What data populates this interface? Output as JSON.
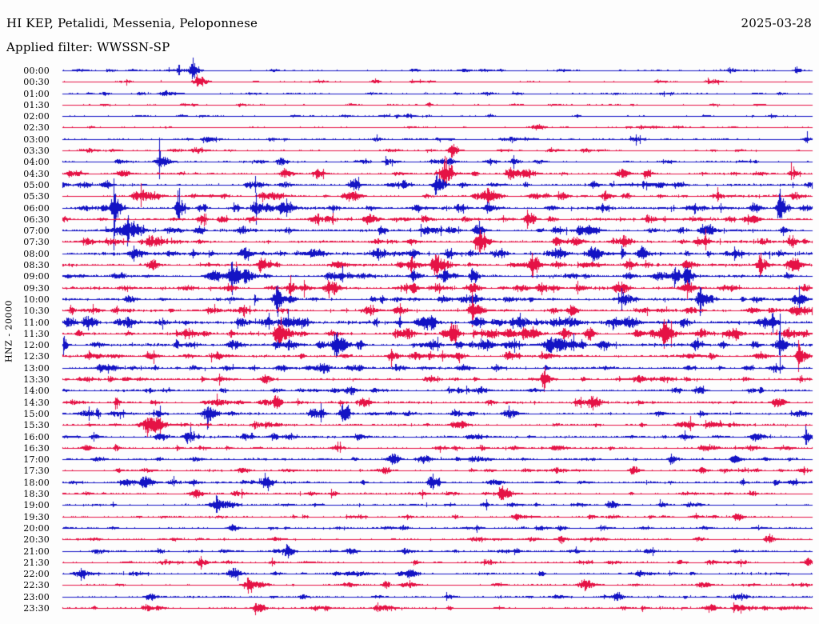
{
  "header": {
    "title": "HI KEP, Petalidi, Messenia, Peloponnese",
    "date": "2025-03-28",
    "filter_label": "Applied filter: WWSSN-SP"
  },
  "y_axis": {
    "channel_scale_label": "HNZ - 20000"
  },
  "colors": {
    "trace_blue": "#1313c4",
    "trace_red": "#e51245",
    "text": "#000000",
    "background": "#fdfdfd"
  },
  "chart_data": {
    "type": "line",
    "subtype": "helicorder-daily-seismogram",
    "title": "HI KEP, Petalidi, Messenia, Peloponnese",
    "station": "KEP",
    "network": "HI",
    "location_name": "Petalidi, Messenia, Peloponnese",
    "channel": "HNZ",
    "scale": 20000,
    "date": "2025-03-28",
    "filter": "WWSSN-SP",
    "minutes_per_row": 30,
    "row_count": 48,
    "trace_color_pattern": [
      "blue",
      "red"
    ],
    "x_range_fraction_of_day_row": [
      0,
      1
    ],
    "legend_note": "48 half-hour traces, times at left edge; noise = background amplitude (px), events = [x-fraction along row, peak amplitude px, spindle width px]",
    "rows": [
      {
        "time": "00:00",
        "color": "blue",
        "noise": 0.7,
        "events": [
          [
            0.173,
            8,
            5
          ],
          [
            0.89,
            2.5,
            6
          ]
        ]
      },
      {
        "time": "00:30",
        "color": "red",
        "noise": 0.55,
        "events": [
          [
            0.18,
            6,
            7
          ]
        ]
      },
      {
        "time": "01:00",
        "color": "blue",
        "noise": 0.7,
        "events": [
          [
            0.055,
            2,
            4
          ],
          [
            0.135,
            2.5,
            8
          ]
        ]
      },
      {
        "time": "01:30",
        "color": "red",
        "noise": 0.55,
        "events": [
          [
            0.237,
            2,
            5
          ],
          [
            0.487,
            3,
            3
          ]
        ]
      },
      {
        "time": "02:00",
        "color": "blue",
        "noise": 0.6,
        "events": [
          [
            0.375,
            1.5,
            5
          ]
        ]
      },
      {
        "time": "02:30",
        "color": "red",
        "noise": 0.55,
        "events": [
          [
            0.77,
            2.5,
            4
          ]
        ]
      },
      {
        "time": "03:00",
        "color": "blue",
        "noise": 0.7,
        "events": [
          [
            0.418,
            2,
            5
          ],
          [
            0.991,
            3,
            3
          ]
        ]
      },
      {
        "time": "03:30",
        "color": "red",
        "noise": 0.7,
        "events": [
          [
            0.519,
            6,
            6
          ],
          [
            0.695,
            2.5,
            5
          ]
        ]
      },
      {
        "time": "04:00",
        "color": "blue",
        "noise": 0.9,
        "events": [
          [
            0.13,
            7,
            7
          ],
          [
            0.29,
            2.5,
            5
          ],
          [
            0.514,
            4,
            5
          ]
        ]
      },
      {
        "time": "04:30",
        "color": "red",
        "noise": 1.1,
        "events": [
          [
            0.077,
            4,
            7
          ],
          [
            0.295,
            4,
            6
          ],
          [
            0.338,
            5,
            6
          ],
          [
            0.509,
            9,
            7
          ],
          [
            0.743,
            4,
            7
          ],
          [
            0.972,
            5,
            5
          ]
        ]
      },
      {
        "time": "05:00",
        "color": "blue",
        "noise": 1.1,
        "events": [
          [
            0.247,
            3,
            6
          ],
          [
            0.386,
            5,
            6
          ],
          [
            0.455,
            4,
            5
          ],
          [
            0.498,
            6,
            6
          ],
          [
            0.706,
            3,
            6
          ]
        ]
      },
      {
        "time": "05:30",
        "color": "red",
        "noise": 1.2,
        "events": [
          [
            0.098,
            5,
            7
          ],
          [
            0.386,
            4,
            6
          ],
          [
            0.567,
            8,
            8
          ],
          [
            0.663,
            5,
            6
          ],
          [
            0.722,
            5,
            5
          ]
        ]
      },
      {
        "time": "06:00",
        "color": "blue",
        "noise": 1.4,
        "events": [
          [
            0.069,
            10,
            6
          ],
          [
            0.154,
            10,
            5
          ],
          [
            0.258,
            4,
            6
          ],
          [
            0.471,
            3,
            6
          ],
          [
            0.919,
            4,
            5
          ],
          [
            0.956,
            9,
            6
          ]
        ]
      },
      {
        "time": "06:30",
        "color": "red",
        "noise": 1.3,
        "events": [
          [
            0.407,
            5,
            7
          ],
          [
            0.62,
            6,
            6
          ],
          [
            0.78,
            4,
            6
          ],
          [
            0.887,
            3,
            5
          ]
        ]
      },
      {
        "time": "07:00",
        "color": "blue",
        "noise": 1.4,
        "events": [
          [
            0.087,
            9,
            9
          ],
          [
            0.237,
            4,
            6
          ],
          [
            0.556,
            3,
            5
          ],
          [
            0.823,
            3,
            5
          ]
        ]
      },
      {
        "time": "07:30",
        "color": "red",
        "noise": 1.4,
        "events": [
          [
            0.556,
            9,
            7
          ],
          [
            0.748,
            6,
            6
          ],
          [
            0.972,
            4,
            5
          ]
        ]
      },
      {
        "time": "08:00",
        "color": "blue",
        "noise": 1.7,
        "events": [
          [
            0.093,
            5,
            7
          ],
          [
            0.343,
            3,
            6
          ],
          [
            0.663,
            3,
            5
          ],
          [
            0.898,
            3,
            5
          ]
        ]
      },
      {
        "time": "08:30",
        "color": "red",
        "noise": 1.5,
        "events": [
          [
            0.498,
            9,
            9
          ],
          [
            0.626,
            6,
            6
          ],
          [
            0.834,
            4,
            6
          ],
          [
            0.93,
            7,
            6
          ]
        ]
      },
      {
        "time": "09:00",
        "color": "blue",
        "noise": 1.5,
        "events": [
          [
            0.226,
            10,
            7
          ],
          [
            0.244,
            8,
            4
          ],
          [
            0.354,
            5,
            5
          ],
          [
            0.546,
            4,
            5
          ],
          [
            0.816,
            6,
            5
          ],
          [
            0.832,
            8,
            5
          ]
        ]
      },
      {
        "time": "09:30",
        "color": "red",
        "noise": 1.4,
        "events": [
          [
            0.221,
            4,
            6
          ],
          [
            0.354,
            7,
            7
          ],
          [
            0.546,
            5,
            6
          ],
          [
            0.988,
            5,
            4
          ]
        ]
      },
      {
        "time": "10:00",
        "color": "blue",
        "noise": 1.4,
        "events": [
          [
            0.087,
            4,
            6
          ],
          [
            0.285,
            9,
            7
          ],
          [
            0.546,
            5,
            6
          ],
          [
            0.748,
            4,
            6
          ],
          [
            0.85,
            9,
            6
          ]
        ]
      },
      {
        "time": "10:30",
        "color": "red",
        "noise": 1.4,
        "events": [
          [
            0.011,
            5,
            3
          ],
          [
            0.546,
            7,
            7
          ],
          [
            0.834,
            4,
            6
          ],
          [
            0.972,
            5,
            4
          ]
        ]
      },
      {
        "time": "11:00",
        "color": "blue",
        "noise": 1.8,
        "events": [
          [
            0.036,
            5,
            6
          ],
          [
            0.61,
            6,
            6
          ],
          [
            0.674,
            4,
            6
          ],
          [
            0.946,
            6,
            5
          ]
        ]
      },
      {
        "time": "11:30",
        "color": "red",
        "noise": 1.8,
        "events": [
          [
            0.29,
            9,
            8
          ],
          [
            0.668,
            6,
            6
          ],
          [
            0.802,
            8,
            7
          ]
        ]
      },
      {
        "time": "12:00",
        "color": "blue",
        "noise": 1.7,
        "events": [
          [
            0.002,
            6,
            3
          ],
          [
            0.365,
            6,
            7
          ],
          [
            0.599,
            4,
            6
          ],
          [
            0.956,
            9,
            5
          ]
        ]
      },
      {
        "time": "12:30",
        "color": "red",
        "noise": 1.4,
        "events": [
          [
            0.594,
            5,
            6
          ],
          [
            0.981,
            10,
            4
          ]
        ]
      },
      {
        "time": "13:00",
        "color": "blue",
        "noise": 1.2,
        "events": [
          [
            0.05,
            4,
            5
          ],
          [
            0.535,
            3,
            6
          ],
          [
            0.834,
            3,
            5
          ]
        ]
      },
      {
        "time": "13:30",
        "color": "red",
        "noise": 1.2,
        "events": [
          [
            0.269,
            5,
            6
          ],
          [
            0.642,
            7,
            6
          ]
        ]
      },
      {
        "time": "14:00",
        "color": "blue",
        "noise": 1.1,
        "events": [
          [
            0.556,
            3,
            6
          ],
          [
            0.844,
            3,
            5
          ]
        ]
      },
      {
        "time": "14:30",
        "color": "red",
        "noise": 1.2,
        "events": [
          [
            0.071,
            5,
            3
          ],
          [
            0.397,
            4,
            6
          ],
          [
            0.706,
            7,
            7
          ]
        ]
      },
      {
        "time": "15:00",
        "color": "blue",
        "noise": 1.2,
        "events": [
          [
            0.194,
            8,
            6
          ],
          [
            0.333,
            5,
            6
          ],
          [
            0.375,
            5,
            5
          ]
        ]
      },
      {
        "time": "15:30",
        "color": "red",
        "noise": 1.2,
        "events": [
          [
            0.114,
            8,
            13
          ]
        ]
      },
      {
        "time": "16:00",
        "color": "blue",
        "noise": 1.1,
        "events": [
          [
            0.167,
            5,
            6
          ],
          [
            0.828,
            4,
            6
          ],
          [
            0.991,
            6,
            4
          ]
        ]
      },
      {
        "time": "16:30",
        "color": "red",
        "noise": 1.0,
        "events": [
          [
            0.029,
            3,
            4
          ],
          [
            0.071,
            3,
            4
          ],
          [
            0.365,
            3,
            6
          ]
        ]
      },
      {
        "time": "17:00",
        "color": "blue",
        "noise": 1.1,
        "events": [
          [
            0.812,
            5,
            5
          ]
        ]
      },
      {
        "time": "17:30",
        "color": "red",
        "noise": 1.0,
        "events": [
          [
            0.759,
            5,
            5
          ]
        ]
      },
      {
        "time": "18:00",
        "color": "blue",
        "noise": 1.1,
        "events": [
          [
            0.269,
            6,
            7
          ],
          [
            0.492,
            4,
            5
          ]
        ]
      },
      {
        "time": "18:30",
        "color": "red",
        "noise": 0.95,
        "events": [
          [
            0.173,
            3,
            6
          ]
        ]
      },
      {
        "time": "19:00",
        "color": "blue",
        "noise": 1.0,
        "events": [
          [
            0.205,
            6,
            8
          ]
        ]
      },
      {
        "time": "19:30",
        "color": "red",
        "noise": 0.85,
        "events": [
          [
            0.898,
            4,
            5
          ]
        ]
      },
      {
        "time": "20:00",
        "color": "blue",
        "noise": 0.85,
        "events": [
          [
            0.226,
            4,
            5
          ],
          [
            0.663,
            3,
            5
          ]
        ]
      },
      {
        "time": "20:30",
        "color": "red",
        "noise": 0.85,
        "events": [
          [
            0.663,
            3,
            5
          ],
          [
            0.94,
            5,
            5
          ]
        ]
      },
      {
        "time": "21:00",
        "color": "blue",
        "noise": 0.85,
        "events": [
          [
            0.301,
            4,
            5
          ],
          [
            0.78,
            3,
            5
          ]
        ]
      },
      {
        "time": "21:30",
        "color": "red",
        "noise": 0.85,
        "events": [
          [
            0.183,
            4,
            6
          ],
          [
            0.993,
            3,
            3
          ]
        ]
      },
      {
        "time": "22:00",
        "color": "blue",
        "noise": 1.1,
        "events": [
          [
            0.397,
            2,
            8
          ]
        ]
      },
      {
        "time": "22:30",
        "color": "red",
        "noise": 0.9,
        "events": [
          [
            0.247,
            6,
            8
          ],
          [
            0.429,
            4,
            4
          ]
        ]
      },
      {
        "time": "23:00",
        "color": "blue",
        "noise": 0.85,
        "events": [
          [
            0.514,
            3,
            5
          ],
          [
            0.738,
            4,
            5
          ]
        ]
      },
      {
        "time": "23:30",
        "color": "red",
        "noise": 1.0,
        "events": [
          [
            0.258,
            5,
            6
          ],
          [
            0.418,
            4,
            4
          ]
        ]
      }
    ]
  }
}
